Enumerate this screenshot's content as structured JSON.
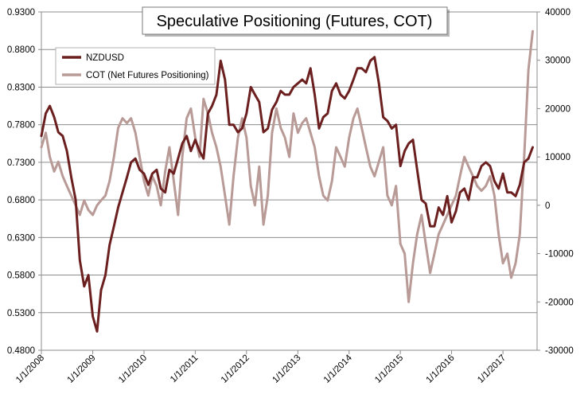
{
  "chart_data": {
    "type": "line",
    "title": "Speculative Positioning (Futures, COT)",
    "xlabel": "",
    "ylabel": "",
    "x_range": [
      "1/1/2008",
      "9/1/2017"
    ],
    "x_tick_labels": [
      "1/1/2008",
      "1/1/2009",
      "1/1/2010",
      "1/1/2011",
      "1/1/2012",
      "1/1/2013",
      "1/1/2014",
      "1/1/2015",
      "1/1/2016",
      "1/1/2017"
    ],
    "y_left": {
      "ylim": [
        0.48,
        0.93
      ],
      "tick_labels": [
        "0.9300",
        "0.8800",
        "0.8300",
        "0.7800",
        "0.7300",
        "0.6800",
        "0.6300",
        "0.5800",
        "0.5300",
        "0.4800"
      ]
    },
    "y_right": {
      "ylim": [
        -30000,
        40000
      ],
      "tick_labels": [
        "40000",
        "30000",
        "20000",
        "10000",
        "0",
        "-10000",
        "-20000",
        "-30000"
      ]
    },
    "grid": true,
    "legend_position": "top-left",
    "series": [
      {
        "name": "NZDUSD",
        "axis": "left",
        "color": "#6b1f1f",
        "x": [
          "2008-01-01",
          "2008-02-01",
          "2008-03-01",
          "2008-04-01",
          "2008-05-01",
          "2008-06-01",
          "2008-07-01",
          "2008-08-01",
          "2008-09-01",
          "2008-10-01",
          "2008-11-01",
          "2008-12-01",
          "2009-01-01",
          "2009-02-01",
          "2009-03-01",
          "2009-04-01",
          "2009-05-01",
          "2009-06-01",
          "2009-07-01",
          "2009-08-01",
          "2009-09-01",
          "2009-10-01",
          "2009-11-01",
          "2009-12-01",
          "2010-01-01",
          "2010-02-01",
          "2010-03-01",
          "2010-04-01",
          "2010-05-01",
          "2010-06-01",
          "2010-07-01",
          "2010-08-01",
          "2010-09-01",
          "2010-10-01",
          "2010-11-01",
          "2010-12-01",
          "2011-01-01",
          "2011-02-01",
          "2011-03-01",
          "2011-04-01",
          "2011-05-01",
          "2011-06-01",
          "2011-07-01",
          "2011-08-01",
          "2011-09-01",
          "2011-10-01",
          "2011-11-01",
          "2011-12-01",
          "2012-01-01",
          "2012-02-01",
          "2012-03-01",
          "2012-04-01",
          "2012-05-01",
          "2012-06-01",
          "2012-07-01",
          "2012-08-01",
          "2012-09-01",
          "2012-10-01",
          "2012-11-01",
          "2012-12-01",
          "2013-01-01",
          "2013-02-01",
          "2013-03-01",
          "2013-04-01",
          "2013-05-01",
          "2013-06-01",
          "2013-07-01",
          "2013-08-01",
          "2013-09-01",
          "2013-10-01",
          "2013-11-01",
          "2013-12-01",
          "2014-01-01",
          "2014-02-01",
          "2014-03-01",
          "2014-04-01",
          "2014-05-01",
          "2014-06-01",
          "2014-07-01",
          "2014-08-01",
          "2014-09-01",
          "2014-10-01",
          "2014-11-01",
          "2014-12-01",
          "2015-01-01",
          "2015-02-01",
          "2015-03-01",
          "2015-04-01",
          "2015-05-01",
          "2015-06-01",
          "2015-07-01",
          "2015-08-01",
          "2015-09-01",
          "2015-10-01",
          "2015-11-01",
          "2015-12-01",
          "2016-01-01",
          "2016-02-01",
          "2016-03-01",
          "2016-04-01",
          "2016-05-01",
          "2016-06-01",
          "2016-07-01",
          "2016-08-01",
          "2016-09-01",
          "2016-10-01",
          "2016-11-01",
          "2016-12-01",
          "2017-01-01",
          "2017-02-01",
          "2017-03-01",
          "2017-04-01",
          "2017-05-01",
          "2017-06-01",
          "2017-07-01",
          "2017-08-01"
        ],
        "values": [
          0.765,
          0.795,
          0.805,
          0.79,
          0.77,
          0.765,
          0.745,
          0.71,
          0.68,
          0.6,
          0.565,
          0.58,
          0.525,
          0.505,
          0.56,
          0.58,
          0.62,
          0.645,
          0.67,
          0.69,
          0.71,
          0.73,
          0.735,
          0.72,
          0.715,
          0.7,
          0.715,
          0.72,
          0.695,
          0.69,
          0.72,
          0.715,
          0.735,
          0.755,
          0.765,
          0.745,
          0.76,
          0.745,
          0.735,
          0.795,
          0.805,
          0.82,
          0.865,
          0.84,
          0.78,
          0.78,
          0.77,
          0.775,
          0.795,
          0.83,
          0.82,
          0.81,
          0.77,
          0.775,
          0.8,
          0.81,
          0.825,
          0.82,
          0.82,
          0.83,
          0.835,
          0.84,
          0.835,
          0.855,
          0.82,
          0.775,
          0.79,
          0.795,
          0.825,
          0.835,
          0.82,
          0.815,
          0.825,
          0.84,
          0.855,
          0.855,
          0.85,
          0.865,
          0.87,
          0.835,
          0.79,
          0.785,
          0.775,
          0.78,
          0.725,
          0.745,
          0.755,
          0.76,
          0.72,
          0.68,
          0.675,
          0.645,
          0.645,
          0.67,
          0.66,
          0.685,
          0.65,
          0.665,
          0.69,
          0.695,
          0.68,
          0.71,
          0.71,
          0.725,
          0.73,
          0.725,
          0.705,
          0.695,
          0.715,
          0.69,
          0.69,
          0.685,
          0.7,
          0.73,
          0.735,
          0.75
        ]
      },
      {
        "name": "COT (Net Futures Positioning)",
        "axis": "right",
        "color": "#b89a97",
        "x": [
          "2008-01-01",
          "2008-02-01",
          "2008-03-01",
          "2008-04-01",
          "2008-05-01",
          "2008-06-01",
          "2008-07-01",
          "2008-08-01",
          "2008-09-01",
          "2008-10-01",
          "2008-11-01",
          "2008-12-01",
          "2009-01-01",
          "2009-02-01",
          "2009-03-01",
          "2009-04-01",
          "2009-05-01",
          "2009-06-01",
          "2009-07-01",
          "2009-08-01",
          "2009-09-01",
          "2009-10-01",
          "2009-11-01",
          "2009-12-01",
          "2010-01-01",
          "2010-02-01",
          "2010-03-01",
          "2010-04-01",
          "2010-05-01",
          "2010-06-01",
          "2010-07-01",
          "2010-08-01",
          "2010-09-01",
          "2010-10-01",
          "2010-11-01",
          "2010-12-01",
          "2011-01-01",
          "2011-02-01",
          "2011-03-01",
          "2011-04-01",
          "2011-05-01",
          "2011-06-01",
          "2011-07-01",
          "2011-08-01",
          "2011-09-01",
          "2011-10-01",
          "2011-11-01",
          "2011-12-01",
          "2012-01-01",
          "2012-02-01",
          "2012-03-01",
          "2012-04-01",
          "2012-05-01",
          "2012-06-01",
          "2012-07-01",
          "2012-08-01",
          "2012-09-01",
          "2012-10-01",
          "2012-11-01",
          "2012-12-01",
          "2013-01-01",
          "2013-02-01",
          "2013-03-01",
          "2013-04-01",
          "2013-05-01",
          "2013-06-01",
          "2013-07-01",
          "2013-08-01",
          "2013-09-01",
          "2013-10-01",
          "2013-11-01",
          "2013-12-01",
          "2014-01-01",
          "2014-02-01",
          "2014-03-01",
          "2014-04-01",
          "2014-05-01",
          "2014-06-01",
          "2014-07-01",
          "2014-08-01",
          "2014-09-01",
          "2014-10-01",
          "2014-11-01",
          "2014-12-01",
          "2015-01-01",
          "2015-02-01",
          "2015-03-01",
          "2015-04-01",
          "2015-05-01",
          "2015-06-01",
          "2015-07-01",
          "2015-08-01",
          "2015-09-01",
          "2015-10-01",
          "2015-11-01",
          "2015-12-01",
          "2016-01-01",
          "2016-02-01",
          "2016-03-01",
          "2016-04-01",
          "2016-05-01",
          "2016-06-01",
          "2016-07-01",
          "2016-08-01",
          "2016-09-01",
          "2016-10-01",
          "2016-11-01",
          "2016-12-01",
          "2017-01-01",
          "2017-02-01",
          "2017-03-01",
          "2017-04-01",
          "2017-05-01",
          "2017-06-01",
          "2017-07-01",
          "2017-08-01"
        ],
        "values": [
          12000,
          15000,
          10000,
          7000,
          9000,
          6000,
          4000,
          2000,
          0,
          -2000,
          1000,
          -1000,
          -2000,
          0,
          1000,
          2000,
          5000,
          10000,
          16000,
          18000,
          17000,
          18000,
          15000,
          10000,
          5000,
          2000,
          6000,
          4000,
          0,
          7000,
          12000,
          5000,
          -2000,
          10000,
          18000,
          20000,
          14000,
          10000,
          22000,
          19000,
          15000,
          12000,
          8000,
          2000,
          -4000,
          6000,
          14000,
          18000,
          14000,
          4000,
          0,
          8000,
          -4000,
          2000,
          15000,
          20000,
          16000,
          14000,
          10000,
          19000,
          15000,
          17000,
          18000,
          15000,
          12000,
          6000,
          2000,
          1000,
          5000,
          12000,
          10000,
          8000,
          14000,
          18000,
          20000,
          16000,
          12000,
          8000,
          6000,
          9000,
          12000,
          2000,
          0,
          4000,
          -8000,
          -10000,
          -20000,
          -12000,
          -6000,
          -2000,
          -8000,
          -14000,
          -10000,
          -6000,
          -4000,
          -2000,
          0,
          2000,
          6000,
          10000,
          8000,
          6000,
          4000,
          3000,
          4000,
          6000,
          2000,
          -6000,
          -12000,
          -10000,
          -15000,
          -12000,
          -6000,
          10000,
          28000,
          36000
        ]
      }
    ]
  }
}
